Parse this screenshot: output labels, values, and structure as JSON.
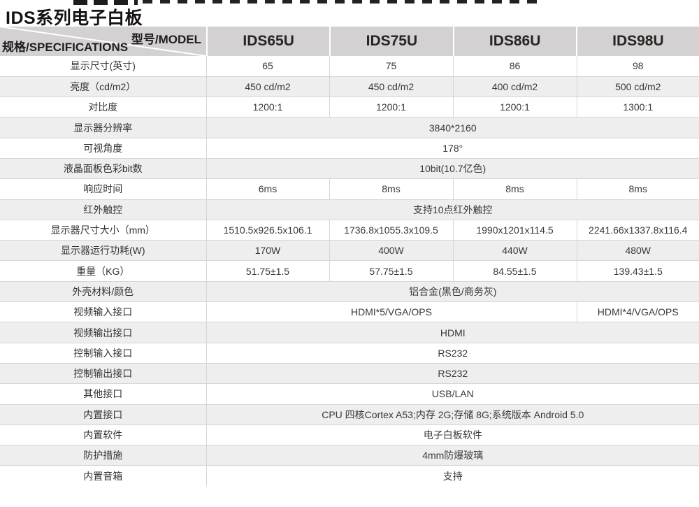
{
  "page": {
    "title": "IDS系列电子白板"
  },
  "colors": {
    "header_bg": "#d3d1d1",
    "stripe_bg": "#efeeee",
    "border": "#d7d5d5",
    "text": "#3a3836"
  },
  "table": {
    "corner": {
      "model_label": "型号/MODEL",
      "spec_label": "规格/SPECIFICATIONS"
    },
    "models": [
      "IDS65U",
      "IDS75U",
      "IDS86U",
      "IDS98U"
    ],
    "rows": [
      {
        "label": "显示尺寸(英寸)",
        "cells": [
          {
            "text": "65"
          },
          {
            "text": "75"
          },
          {
            "text": "86"
          },
          {
            "text": "98"
          }
        ]
      },
      {
        "label": "亮度（cd/m2）",
        "cells": [
          {
            "text": "450 cd/m2"
          },
          {
            "text": "450 cd/m2"
          },
          {
            "text": "400 cd/m2"
          },
          {
            "text": "500 cd/m2"
          }
        ]
      },
      {
        "label": "对比度",
        "cells": [
          {
            "text": "1200:1"
          },
          {
            "text": "1200:1"
          },
          {
            "text": "1200:1"
          },
          {
            "text": "1300:1"
          }
        ]
      },
      {
        "label": "显示器分辨率",
        "cells": [
          {
            "text": "3840*2160",
            "span": 4
          }
        ]
      },
      {
        "label": "可视角度",
        "cells": [
          {
            "text": "178°",
            "span": 4
          }
        ]
      },
      {
        "label": "液晶面板色彩bit数",
        "cells": [
          {
            "text": "10bit(10.7亿色)",
            "span": 4
          }
        ]
      },
      {
        "label": "响应时间",
        "cells": [
          {
            "text": "6ms"
          },
          {
            "text": "8ms"
          },
          {
            "text": "8ms"
          },
          {
            "text": "8ms"
          }
        ]
      },
      {
        "label": "红外触控",
        "cells": [
          {
            "text": "支持10点红外触控",
            "span": 4
          }
        ]
      },
      {
        "label": "显示器尺寸大小（mm）",
        "cells": [
          {
            "text": "1510.5x926.5x106.1"
          },
          {
            "text": "1736.8x1055.3x109.5"
          },
          {
            "text": "1990x1201x114.5"
          },
          {
            "text": "2241.66x1337.8x116.4"
          }
        ]
      },
      {
        "label": "显示器运行功耗(W)",
        "cells": [
          {
            "text": "170W"
          },
          {
            "text": "400W"
          },
          {
            "text": "440W"
          },
          {
            "text": "480W"
          }
        ]
      },
      {
        "label": "重量（KG）",
        "cells": [
          {
            "text": "51.75±1.5"
          },
          {
            "text": "57.75±1.5"
          },
          {
            "text": "84.55±1.5"
          },
          {
            "text": "139.43±1.5"
          }
        ]
      },
      {
        "label": "外壳材料/颜色",
        "cells": [
          {
            "text": "铝合金(黑色/商务灰)",
            "span": 4
          }
        ]
      },
      {
        "label": "视频输入接口",
        "cells": [
          {
            "text": "HDMI*5/VGA/OPS",
            "span": 3
          },
          {
            "text": "HDMI*4/VGA/OPS"
          }
        ]
      },
      {
        "label": "视频输出接口",
        "cells": [
          {
            "text": "HDMI",
            "span": 4
          }
        ]
      },
      {
        "label": "控制输入接口",
        "cells": [
          {
            "text": "RS232",
            "span": 4
          }
        ]
      },
      {
        "label": "控制输出接口",
        "cells": [
          {
            "text": "RS232",
            "span": 4
          }
        ]
      },
      {
        "label": "其他接口",
        "cells": [
          {
            "text": "USB/LAN",
            "span": 4
          }
        ]
      },
      {
        "label": "内置接口",
        "cells": [
          {
            "text": "CPU 四核Cortex A53;内存 2G;存储 8G;系统版本 Android 5.0",
            "span": 4
          }
        ]
      },
      {
        "label": "内置软件",
        "cells": [
          {
            "text": "电子白板软件",
            "span": 4
          }
        ]
      },
      {
        "label": "防护措施",
        "cells": [
          {
            "text": "4mm防爆玻璃",
            "span": 4
          }
        ]
      },
      {
        "label": "内置音箱",
        "cells": [
          {
            "text": "支持",
            "span": 4
          }
        ]
      }
    ]
  }
}
